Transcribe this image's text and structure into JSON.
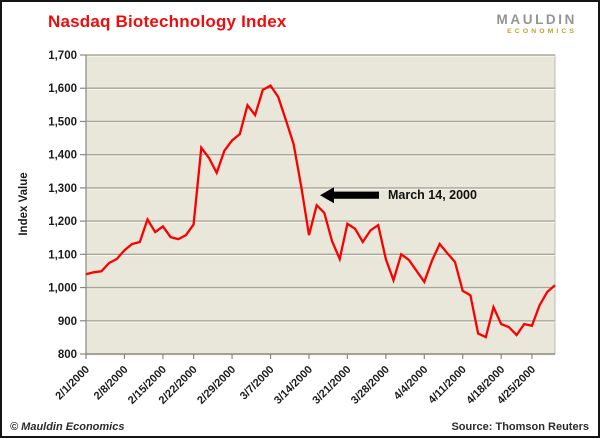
{
  "header": {
    "title": "Nasdaq Biotechnology Index",
    "logo_line1": "MAULDIN",
    "logo_line2": "ECONOMICS"
  },
  "footer": {
    "copyright": "© Mauldin Economics",
    "source": "Source: Thomson Reuters"
  },
  "colors": {
    "title_red": "#ee0d0d",
    "series_red": "#fb0000",
    "plot_background": "#e8e7da",
    "gridline": "#a9a79b",
    "gridline_highlight": "#f8f7ee",
    "axis": "#8a887e",
    "logo_gray": "#949494",
    "logo_gold": "#c3a02c",
    "annotation_black": "#000000"
  },
  "chart_data": {
    "type": "line",
    "title": "Nasdaq Biotechnology Index",
    "xlabel": "",
    "ylabel": "Index Value",
    "ylim": [
      800,
      1700
    ],
    "grid": true,
    "legend": "none",
    "y_tick_labels": [
      "800",
      "900",
      "1,000",
      "1,100",
      "1,200",
      "1,300",
      "1,400",
      "1,500",
      "1,600",
      "1,700"
    ],
    "x_tick_labels": [
      "2/1/2000",
      "2/8/2000",
      "2/15/2000",
      "2/22/2000",
      "2/29/2000",
      "3/7/2000",
      "3/14/2000",
      "3/21/2000",
      "3/28/2000",
      "4/4/2000",
      "4/11/2000",
      "4/18/2000",
      "4/25/2000"
    ],
    "x_tick_indices": [
      0,
      5,
      10,
      14,
      19,
      24,
      29,
      34,
      39,
      44,
      49,
      54,
      58
    ],
    "x": [
      "2/1/2000",
      "2/2/2000",
      "2/3/2000",
      "2/4/2000",
      "2/7/2000",
      "2/8/2000",
      "2/9/2000",
      "2/10/2000",
      "2/11/2000",
      "2/14/2000",
      "2/15/2000",
      "2/16/2000",
      "2/17/2000",
      "2/18/2000",
      "2/22/2000",
      "2/23/2000",
      "2/24/2000",
      "2/25/2000",
      "2/28/2000",
      "2/29/2000",
      "3/1/2000",
      "3/2/2000",
      "3/3/2000",
      "3/6/2000",
      "3/7/2000",
      "3/8/2000",
      "3/9/2000",
      "3/10/2000",
      "3/13/2000",
      "3/14/2000",
      "3/15/2000",
      "3/16/2000",
      "3/17/2000",
      "3/20/2000",
      "3/21/2000",
      "3/22/2000",
      "3/23/2000",
      "3/24/2000",
      "3/27/2000",
      "3/28/2000",
      "3/29/2000",
      "3/30/2000",
      "3/31/2000",
      "4/3/2000",
      "4/4/2000",
      "4/5/2000",
      "4/6/2000",
      "4/7/2000",
      "4/10/2000",
      "4/11/2000",
      "4/12/2000",
      "4/13/2000",
      "4/14/2000",
      "4/17/2000",
      "4/18/2000",
      "4/19/2000",
      "4/20/2000",
      "4/24/2000",
      "4/25/2000",
      "4/26/2000",
      "4/27/2000",
      "4/28/2000"
    ],
    "values": [
      1040,
      1046,
      1049,
      1074,
      1086,
      1112,
      1131,
      1137,
      1205,
      1167,
      1184,
      1152,
      1146,
      1158,
      1190,
      1421,
      1390,
      1345,
      1412,
      1443,
      1462,
      1549,
      1519,
      1595,
      1608,
      1574,
      1504,
      1432,
      1303,
      1158,
      1248,
      1225,
      1140,
      1086,
      1192,
      1177,
      1137,
      1172,
      1188,
      1085,
      1022,
      1100,
      1083,
      1050,
      1017,
      1081,
      1131,
      1103,
      1077,
      990,
      977,
      862,
      851,
      941,
      890,
      881,
      857,
      890,
      885,
      947,
      987,
      1007
    ],
    "annotation": {
      "text": "March 14, 2000",
      "points_to_date": "3/14/2000",
      "arrow_value_level": 1278
    }
  }
}
